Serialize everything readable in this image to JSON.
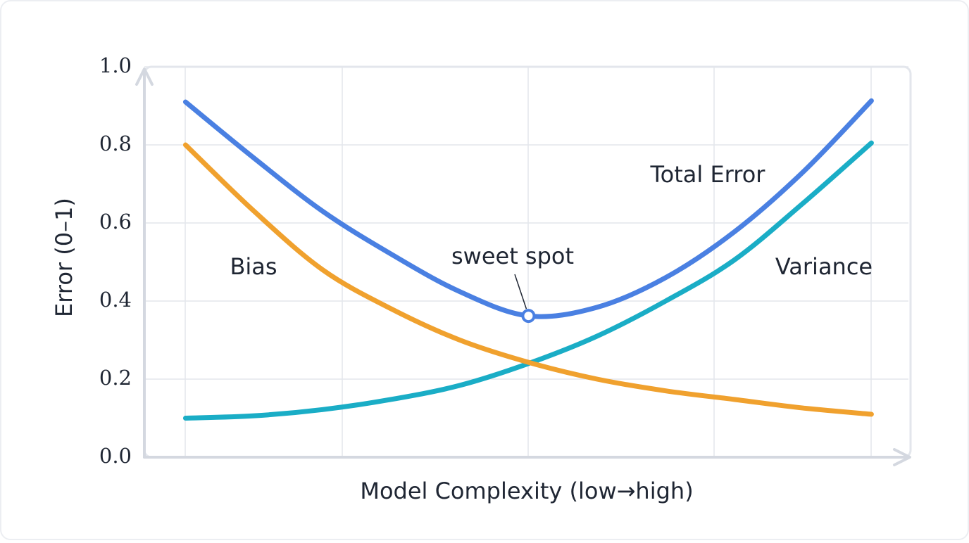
{
  "chart_data": {
    "type": "line",
    "x_label": "Model Complexity (low→high)",
    "y_label": "Error (0–1)",
    "x": [
      0,
      0.1,
      0.2,
      0.3,
      0.4,
      0.5,
      0.6,
      0.7,
      0.8,
      0.9,
      1.0
    ],
    "xlim": [
      -0.06,
      1.054
    ],
    "ylim": [
      0,
      1
    ],
    "yticks": [
      {
        "value": 0,
        "label": "0.0"
      },
      0.2,
      0.4,
      0.6,
      0.8,
      {
        "value": 1,
        "label": "1.0"
      }
    ],
    "grid": true,
    "series": [
      {
        "name": "Total Error",
        "color": "#4a80e2",
        "values": [
          0.91,
          0.766,
          0.63,
          0.52,
          0.424,
          0.362,
          0.384,
          0.46,
          0.577,
          0.73,
          0.913
        ]
      },
      {
        "name": "Bias",
        "color": "#f0a12e",
        "values": [
          0.8,
          0.63,
          0.48,
          0.38,
          0.3,
          0.243,
          0.2,
          0.17,
          0.148,
          0.126,
          0.11
        ]
      },
      {
        "name": "Variance",
        "color": "#1aadc6",
        "values": [
          0.1,
          0.106,
          0.122,
          0.148,
          0.184,
          0.24,
          0.31,
          0.4,
          0.505,
          0.65,
          0.805
        ]
      }
    ],
    "annotation": {
      "text": "sweet spot",
      "series": 0,
      "index": 5
    }
  }
}
